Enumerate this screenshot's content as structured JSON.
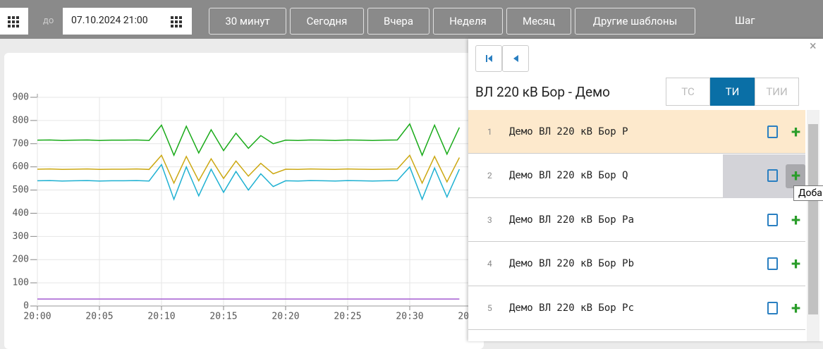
{
  "toolbar": {
    "to_label": "до",
    "datetime": "07.10.2024 21:00",
    "buttons": [
      "30 минут",
      "Сегодня",
      "Вчера",
      "Неделя",
      "Месяц",
      "Другие шаблоны"
    ],
    "step_label": "Шаг"
  },
  "chart_data": {
    "type": "line",
    "x": [
      "20:00",
      "20:01",
      "20:02",
      "20:03",
      "20:04",
      "20:05",
      "20:06",
      "20:07",
      "20:08",
      "20:09",
      "20:10",
      "20:11",
      "20:12",
      "20:13",
      "20:14",
      "20:15",
      "20:16",
      "20:17",
      "20:18",
      "20:19",
      "20:20",
      "20:21",
      "20:22",
      "20:23",
      "20:24",
      "20:25",
      "20:26",
      "20:27",
      "20:28",
      "20:29",
      "20:30",
      "20:31",
      "20:32",
      "20:33",
      "20:34",
      "20:35"
    ],
    "series": [
      {
        "color": "#1aab1a",
        "values": [
          715,
          716,
          714,
          715,
          716,
          714,
          715,
          715,
          716,
          714,
          780,
          650,
          775,
          660,
          760,
          670,
          745,
          680,
          735,
          700,
          715,
          714,
          716,
          715,
          714,
          716,
          715,
          714,
          715,
          716,
          785,
          650,
          780,
          655,
          770,
          null
        ]
      },
      {
        "color": "#cca813",
        "values": [
          590,
          591,
          589,
          590,
          591,
          589,
          590,
          590,
          591,
          589,
          650,
          530,
          645,
          540,
          635,
          550,
          625,
          560,
          615,
          570,
          590,
          589,
          591,
          590,
          589,
          591,
          590,
          589,
          590,
          591,
          650,
          530,
          645,
          535,
          640,
          null
        ]
      },
      {
        "color": "#1fb1d2",
        "values": [
          540,
          541,
          539,
          540,
          541,
          539,
          540,
          540,
          541,
          539,
          610,
          460,
          600,
          475,
          590,
          490,
          580,
          500,
          570,
          515,
          540,
          539,
          541,
          540,
          539,
          541,
          540,
          539,
          540,
          541,
          600,
          460,
          595,
          470,
          590,
          null
        ]
      },
      {
        "color": "#a35bd0",
        "values": [
          30,
          30,
          30,
          30,
          30,
          30,
          30,
          30,
          30,
          30,
          30,
          30,
          30,
          30,
          30,
          30,
          30,
          30,
          30,
          30,
          30,
          30,
          30,
          30,
          30,
          30,
          30,
          30,
          30,
          30,
          30,
          30,
          30,
          30,
          30,
          null
        ]
      }
    ],
    "ylim": [
      0,
      900
    ],
    "yticks": [
      0,
      100,
      200,
      300,
      400,
      500,
      600,
      700,
      800,
      900
    ],
    "grid": true
  },
  "panel": {
    "title": "ВЛ 220 кВ Бор - Демо",
    "tabs": [
      "ТС",
      "ТИ",
      "ТИИ"
    ],
    "active_tab": 1,
    "rows": [
      {
        "index": "1",
        "name": "Демо ВЛ 220 кВ Бор P"
      },
      {
        "index": "2",
        "name": "Демо ВЛ 220 кВ Бор Q"
      },
      {
        "index": "3",
        "name": "Демо ВЛ 220 кВ Бор Pa"
      },
      {
        "index": "4",
        "name": "Демо ВЛ 220 кВ Бор Pb"
      },
      {
        "index": "5",
        "name": "Демо ВЛ 220 кВ Бор Pc"
      }
    ],
    "highlighted_row": 0,
    "hovered_row": 1,
    "tooltip": "Доба"
  }
}
